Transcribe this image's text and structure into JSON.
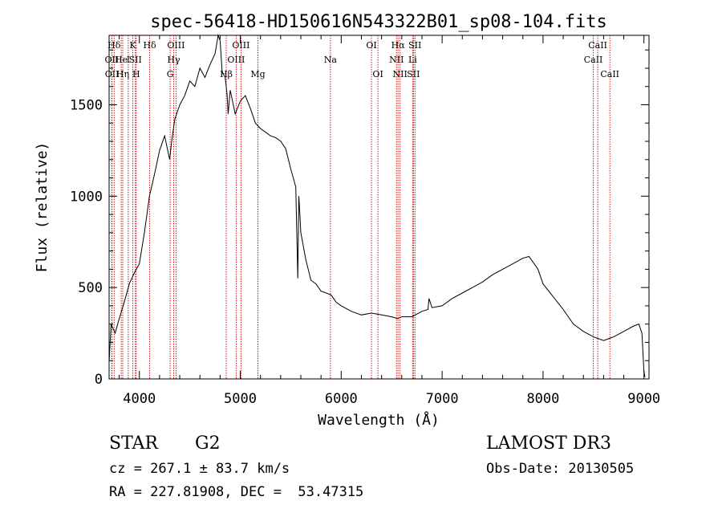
{
  "chart_data": {
    "type": "line",
    "title": "spec-56418-HD150616N543322B01_sp08-104.fits",
    "xlabel": "Wavelength (Å)",
    "ylabel": "Flux (relative)",
    "xlim": [
      3700,
      9050
    ],
    "ylim": [
      0,
      1880
    ],
    "xticks": [
      4000,
      5000,
      6000,
      7000,
      8000,
      9000
    ],
    "xtick_labels": [
      "4000",
      "5000",
      "6000",
      "7000",
      "8000",
      "9000"
    ],
    "yticks": [
      0,
      500,
      1000,
      1500
    ],
    "ytick_labels": [
      "0",
      "500",
      "1000",
      "1500"
    ],
    "series": [
      {
        "name": "spectrum",
        "x": [
          3700,
          3720,
          3760,
          3800,
          3850,
          3900,
          3950,
          4000,
          4050,
          4100,
          4150,
          4200,
          4250,
          4300,
          4320,
          4350,
          4400,
          4450,
          4500,
          4550,
          4600,
          4650,
          4700,
          4750,
          4780,
          4800,
          4820,
          4850,
          4870,
          4880,
          4900,
          4950,
          5000,
          5050,
          5100,
          5150,
          5200,
          5250,
          5300,
          5350,
          5400,
          5450,
          5500,
          5550,
          5570,
          5580,
          5590,
          5600,
          5650,
          5700,
          5750,
          5800,
          5850,
          5900,
          5950,
          6000,
          6100,
          6200,
          6300,
          6400,
          6500,
          6560,
          6600,
          6700,
          6800,
          6860,
          6870,
          6900,
          7000,
          7100,
          7200,
          7300,
          7400,
          7500,
          7600,
          7700,
          7800,
          7860,
          7900,
          7950,
          8000,
          8100,
          8200,
          8300,
          8400,
          8500,
          8600,
          8700,
          8800,
          8900,
          8950,
          8980,
          9000,
          9010
        ],
        "values": [
          90,
          300,
          250,
          330,
          420,
          520,
          580,
          630,
          800,
          1000,
          1120,
          1250,
          1330,
          1200,
          1300,
          1420,
          1500,
          1550,
          1630,
          1600,
          1700,
          1650,
          1720,
          1780,
          1900,
          1850,
          1680,
          1650,
          1550,
          1450,
          1580,
          1450,
          1520,
          1550,
          1480,
          1400,
          1370,
          1350,
          1330,
          1320,
          1300,
          1260,
          1150,
          1050,
          550,
          1000,
          900,
          800,
          650,
          540,
          520,
          480,
          470,
          460,
          420,
          400,
          370,
          350,
          360,
          350,
          340,
          330,
          340,
          340,
          370,
          380,
          440,
          390,
          400,
          440,
          470,
          500,
          530,
          570,
          600,
          630,
          660,
          670,
          640,
          600,
          520,
          450,
          380,
          300,
          260,
          230,
          210,
          230,
          260,
          290,
          300,
          250,
          40,
          10
        ]
      }
    ],
    "line_markers": [
      {
        "label": "OII",
        "wavelength": 3727,
        "row": 1
      },
      {
        "label": "OII",
        "wavelength": 3729,
        "row": 2
      },
      {
        "label": "Hδ",
        "wavelength": 3750,
        "row": 0
      },
      {
        "label": "He",
        "wavelength": 3820,
        "row": 1
      },
      {
        "label": "Hη",
        "wavelength": 3835,
        "row": 2
      },
      {
        "label": "K",
        "wavelength": 3934,
        "row": 0
      },
      {
        "label": "I",
        "wavelength": 3890,
        "row": 1
      },
      {
        "label": "SII",
        "wavelength": 3960,
        "row": 1
      },
      {
        "label": "H",
        "wavelength": 3969,
        "row": 2
      },
      {
        "label": "Hδ",
        "wavelength": 4102,
        "row": 0
      },
      {
        "label": "OIII",
        "wavelength": 4363,
        "row": 0
      },
      {
        "label": "Hγ",
        "wavelength": 4340,
        "row": 1
      },
      {
        "label": "G",
        "wavelength": 4305,
        "row": 2
      },
      {
        "label": "Hβ",
        "wavelength": 4861,
        "row": 2
      },
      {
        "label": "OIII",
        "wavelength": 4959,
        "row": 1
      },
      {
        "label": "OIII",
        "wavelength": 5007,
        "row": 0
      },
      {
        "label": "Mg",
        "wavelength": 5175,
        "row": 2
      },
      {
        "label": "Na",
        "wavelength": 5893,
        "row": 1
      },
      {
        "label": "OI",
        "wavelength": 6300,
        "row": 0
      },
      {
        "label": "OI",
        "wavelength": 6364,
        "row": 2
      },
      {
        "label": "NII",
        "wavelength": 6548,
        "row": 1
      },
      {
        "label": "Hα",
        "wavelength": 6563,
        "row": 0
      },
      {
        "label": "NII",
        "wavelength": 6583,
        "row": 2
      },
      {
        "label": "SII",
        "wavelength": 6716,
        "row": 2
      },
      {
        "label": "SII",
        "wavelength": 6731,
        "row": 0
      },
      {
        "label": "Li",
        "wavelength": 6708,
        "row": 1
      },
      {
        "label": "CaII",
        "wavelength": 8498,
        "row": 1
      },
      {
        "label": "CaII",
        "wavelength": 8542,
        "row": 0
      },
      {
        "label": "CaII",
        "wavelength": 8662,
        "row": 2
      }
    ]
  },
  "info": {
    "object_class": "STAR",
    "subclass": "G2",
    "redshift_line": "cz = 267.1 ± 83.7 km/s",
    "coords_line": "RA = 227.81908, DEC =  53.47315",
    "survey": "LAMOST DR3",
    "obs_date_line": "Obs-Date: 20130505"
  },
  "colors": {
    "spectrum": "#000000",
    "marker_line": "#cc0000",
    "axis": "#000000"
  }
}
